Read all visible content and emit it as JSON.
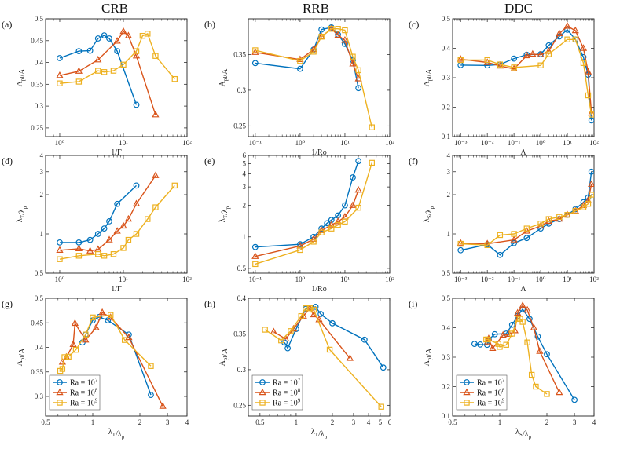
{
  "column_titles": [
    "CRB",
    "RRB",
    "DDC"
  ],
  "series_meta": [
    {
      "name": "Ra = 10",
      "exp": "7",
      "color": "#0072BD",
      "marker": "circle"
    },
    {
      "name": "Ra = 10",
      "exp": "8",
      "color": "#D95319",
      "marker": "triangle"
    },
    {
      "name": "Ra = 10",
      "exp": "9",
      "color": "#EDB120",
      "marker": "square"
    }
  ],
  "chart_data": [
    {
      "panel": "(a)",
      "type": "line",
      "xscale": "log",
      "yscale": "linear",
      "xlim": [
        0.6,
        100
      ],
      "ylim": [
        0.23,
        0.5
      ],
      "xticks": [
        1,
        10,
        100
      ],
      "xticklabels": [
        "10⁰",
        "10¹",
        "10²"
      ],
      "yticks": [
        0.25,
        0.3,
        0.35,
        0.4,
        0.45,
        0.5
      ],
      "yticklabels": [
        "0.25",
        "0.3",
        "0.35",
        "0.4",
        "0.45",
        "0.5"
      ],
      "xlabel": "1/Γ",
      "ylabel": "A_pl/A",
      "legend": "",
      "series": [
        {
          "name": "Ra = 10^7",
          "x": [
            1,
            2,
            3,
            4,
            5,
            6,
            8,
            16
          ],
          "y": [
            0.41,
            0.426,
            0.427,
            0.455,
            0.462,
            0.455,
            0.426,
            0.303
          ]
        },
        {
          "name": "Ra = 10^8",
          "x": [
            1,
            2,
            4,
            8,
            10,
            12,
            16,
            32
          ],
          "y": [
            0.37,
            0.38,
            0.406,
            0.449,
            0.471,
            0.461,
            0.415,
            0.28
          ]
        },
        {
          "name": "Ra = 10^9",
          "x": [
            1,
            2,
            4,
            5,
            7,
            10,
            16,
            20,
            24,
            32,
            64
          ],
          "y": [
            0.352,
            0.356,
            0.381,
            0.378,
            0.381,
            0.395,
            0.426,
            0.461,
            0.466,
            0.415,
            0.362
          ]
        }
      ]
    },
    {
      "panel": "(b)",
      "type": "line",
      "xscale": "log",
      "yscale": "linear",
      "xlim": [
        0.07,
        100
      ],
      "ylim": [
        0.235,
        0.4
      ],
      "xticks": [
        0.1,
        1,
        10,
        100
      ],
      "xticklabels": [
        "10⁻¹",
        "10⁰",
        "10¹",
        "10²"
      ],
      "yticks": [
        0.25,
        0.3,
        0.35
      ],
      "yticklabels": [
        "0.25",
        "0.3",
        "0.35"
      ],
      "xlabel": "1/Ro",
      "ylabel": "A_pl/A",
      "legend": "",
      "series": [
        {
          "name": "Ra = 10^7",
          "x": [
            0.1,
            1,
            2,
            3,
            5,
            7,
            10,
            15,
            20
          ],
          "y": [
            0.338,
            0.33,
            0.357,
            0.385,
            0.388,
            0.378,
            0.365,
            0.342,
            0.303
          ]
        },
        {
          "name": "Ra = 10^8",
          "x": [
            0.1,
            1,
            2,
            3,
            5,
            7,
            10,
            15,
            20
          ],
          "y": [
            0.353,
            0.343,
            0.357,
            0.375,
            0.386,
            0.377,
            0.37,
            0.337,
            0.316
          ]
        },
        {
          "name": "Ra = 10^9",
          "x": [
            0.1,
            1,
            2,
            3,
            5,
            7,
            10,
            15,
            20,
            40
          ],
          "y": [
            0.356,
            0.341,
            0.354,
            0.375,
            0.386,
            0.386,
            0.384,
            0.347,
            0.328,
            0.248
          ]
        }
      ]
    },
    {
      "panel": "(c)",
      "type": "line",
      "xscale": "log",
      "yscale": "linear",
      "xlim": [
        0.0005,
        100
      ],
      "ylim": [
        0.1,
        0.5
      ],
      "xticks": [
        0.001,
        0.01,
        0.1,
        1,
        10,
        100
      ],
      "xticklabels": [
        "10⁻³",
        "10⁻²",
        "10⁻¹",
        "10⁰",
        "10¹",
        "10²"
      ],
      "yticks": [
        0.1,
        0.2,
        0.3,
        0.4,
        0.5
      ],
      "yticklabels": [
        "0.1",
        "0.2",
        "0.3",
        "0.4",
        "0.5"
      ],
      "xlabel": "Λ",
      "ylabel": "A_pl/A",
      "legend": "",
      "series": [
        {
          "name": "Ra = 10^7",
          "x": [
            0.001,
            0.01,
            0.03,
            0.1,
            0.3,
            1,
            2,
            5,
            10,
            20,
            40,
            60,
            80
          ],
          "y": [
            0.343,
            0.342,
            0.345,
            0.365,
            0.378,
            0.38,
            0.41,
            0.44,
            0.463,
            0.43,
            0.37,
            0.31,
            0.155
          ]
        },
        {
          "name": "Ra = 10^8",
          "x": [
            0.001,
            0.01,
            0.03,
            0.1,
            0.3,
            0.5,
            1,
            2,
            5,
            10,
            20,
            40,
            60,
            80
          ],
          "y": [
            0.363,
            0.352,
            0.34,
            0.33,
            0.375,
            0.38,
            0.378,
            0.39,
            0.45,
            0.475,
            0.46,
            0.4,
            0.32,
            0.18
          ]
        },
        {
          "name": "Ra = 10^9",
          "x": [
            0.001,
            0.01,
            0.03,
            0.1,
            1,
            2,
            10,
            20,
            40,
            60,
            80
          ],
          "y": [
            0.36,
            0.36,
            0.345,
            0.335,
            0.342,
            0.38,
            0.43,
            0.43,
            0.35,
            0.24,
            0.175
          ]
        }
      ]
    },
    {
      "panel": "(d)",
      "type": "line",
      "xscale": "log",
      "yscale": "log",
      "xlim": [
        0.6,
        100
      ],
      "ylim": [
        0.5,
        4
      ],
      "xticks": [
        1,
        10,
        100
      ],
      "xticklabels": [
        "10⁰",
        "10¹",
        "10²"
      ],
      "yticks": [
        0.5,
        1,
        2,
        3,
        4
      ],
      "yticklabels": [
        "0.5",
        "1",
        "2",
        "3",
        "4"
      ],
      "xlabel": "1/Γ",
      "ylabel": "λ_T/λ_p",
      "legend": "",
      "series": [
        {
          "name": "Ra = 10^7",
          "x": [
            1,
            2,
            3,
            4,
            5,
            6,
            8,
            16
          ],
          "y": [
            0.86,
            0.86,
            0.9,
            1.0,
            1.1,
            1.25,
            1.7,
            2.35
          ]
        },
        {
          "name": "Ra = 10^8",
          "x": [
            1,
            2,
            3,
            4,
            6,
            8,
            10,
            12,
            16,
            32
          ],
          "y": [
            0.75,
            0.77,
            0.74,
            0.76,
            0.9,
            1.05,
            1.15,
            1.3,
            1.7,
            2.8
          ]
        },
        {
          "name": "Ra = 10^9",
          "x": [
            1,
            2,
            4,
            5,
            7,
            10,
            12,
            16,
            24,
            32,
            64
          ],
          "y": [
            0.64,
            0.68,
            0.7,
            0.68,
            0.7,
            0.78,
            0.9,
            1.0,
            1.3,
            1.6,
            2.35
          ]
        }
      ]
    },
    {
      "panel": "(e)",
      "type": "line",
      "xscale": "log",
      "yscale": "log",
      "xlim": [
        0.07,
        100
      ],
      "ylim": [
        0.45,
        6
      ],
      "xticks": [
        0.1,
        1,
        10,
        100
      ],
      "xticklabels": [
        "10⁻¹",
        "10⁰",
        "10¹",
        "10²"
      ],
      "yticks": [
        0.5,
        1,
        2,
        3,
        4,
        5,
        6
      ],
      "yticklabels": [
        "0.5",
        "1",
        "2",
        "3",
        "4",
        "5",
        "6"
      ],
      "xlabel": "1/Ro",
      "ylabel": "λ_T/λ_p",
      "legend": "",
      "series": [
        {
          "name": "Ra = 10^7",
          "x": [
            0.1,
            1,
            2,
            3,
            4,
            5,
            7,
            10,
            15,
            20
          ],
          "y": [
            0.8,
            0.85,
            1.0,
            1.2,
            1.35,
            1.45,
            1.6,
            2.0,
            3.7,
            5.3
          ]
        },
        {
          "name": "Ra = 10^8",
          "x": [
            0.1,
            1,
            2,
            3,
            5,
            7,
            10,
            15,
            20
          ],
          "y": [
            0.65,
            0.82,
            0.95,
            1.15,
            1.3,
            1.4,
            1.55,
            2.0,
            2.8
          ]
        },
        {
          "name": "Ra = 10^9",
          "x": [
            0.1,
            1,
            2,
            3,
            5,
            7,
            10,
            20,
            40
          ],
          "y": [
            0.55,
            0.75,
            0.9,
            1.1,
            1.2,
            1.3,
            1.4,
            1.9,
            5.1
          ]
        }
      ]
    },
    {
      "panel": "(f)",
      "type": "line",
      "xscale": "log",
      "yscale": "log",
      "xlim": [
        0.0005,
        100
      ],
      "ylim": [
        0.5,
        4
      ],
      "xticks": [
        0.001,
        0.01,
        0.1,
        1,
        10,
        100
      ],
      "xticklabels": [
        "10⁻³",
        "10⁻²",
        "10⁻¹",
        "10⁰",
        "10¹",
        "10²"
      ],
      "yticks": [
        0.5,
        1,
        2,
        3,
        4
      ],
      "yticklabels": [
        "0.5",
        "1",
        "2",
        "3",
        "4"
      ],
      "xlabel": "Λ",
      "ylabel": "λ_S/λ_p",
      "legend": "",
      "series": [
        {
          "name": "Ra = 10^7",
          "x": [
            0.001,
            0.01,
            0.03,
            0.1,
            0.3,
            1,
            2,
            5,
            10,
            20,
            40,
            60,
            80
          ],
          "y": [
            0.75,
            0.83,
            0.69,
            0.85,
            0.93,
            1.1,
            1.2,
            1.3,
            1.4,
            1.55,
            1.75,
            1.9,
            3.0
          ]
        },
        {
          "name": "Ra = 10^8",
          "x": [
            0.001,
            0.01,
            0.1,
            0.3,
            1,
            2,
            5,
            10,
            20,
            40,
            60,
            80
          ],
          "y": [
            0.85,
            0.84,
            0.9,
            1.05,
            1.15,
            1.25,
            1.3,
            1.4,
            1.5,
            1.65,
            1.8,
            2.4
          ]
        },
        {
          "name": "Ra = 10^9",
          "x": [
            0.001,
            0.01,
            0.03,
            0.1,
            0.3,
            1,
            2,
            5,
            10,
            20,
            40,
            60,
            80
          ],
          "y": [
            0.84,
            0.82,
            0.98,
            1.0,
            1.1,
            1.2,
            1.3,
            1.35,
            1.4,
            1.5,
            1.6,
            1.7,
            2.0
          ]
        }
      ]
    },
    {
      "panel": "(g)",
      "type": "line",
      "xscale": "log",
      "yscale": "linear",
      "xlim": [
        0.5,
        4
      ],
      "ylim": [
        0.26,
        0.5
      ],
      "xticks": [
        0.5,
        1,
        2,
        3,
        4
      ],
      "xticklabels": [
        "0.5",
        "1",
        "2",
        "3",
        "4"
      ],
      "yticks": [
        0.3,
        0.35,
        0.4,
        0.45,
        0.5
      ],
      "yticklabels": [
        "0.3",
        "0.35",
        "0.4",
        "0.45",
        "0.5"
      ],
      "xlabel": "λ_T/λ_p",
      "ylabel": "A_pl/A",
      "legend": "bottom-left",
      "series": [
        {
          "name": "Ra = 10^7",
          "x": [
            0.86,
            0.9,
            1.0,
            1.1,
            1.25,
            1.7,
            2.35
          ],
          "y": [
            0.41,
            0.426,
            0.455,
            0.462,
            0.455,
            0.426,
            0.303
          ]
        },
        {
          "name": "Ra = 10^8",
          "x": [
            0.64,
            0.68,
            0.75,
            0.77,
            0.9,
            1.05,
            1.15,
            1.3,
            1.7,
            2.8
          ],
          "y": [
            0.37,
            0.38,
            0.406,
            0.449,
            0.415,
            0.44,
            0.471,
            0.461,
            0.42,
            0.28
          ]
        },
        {
          "name": "Ra = 10^9",
          "x": [
            0.62,
            0.64,
            0.66,
            0.7,
            0.78,
            0.9,
            1.0,
            1.3,
            1.6,
            2.35
          ],
          "y": [
            0.352,
            0.356,
            0.38,
            0.381,
            0.395,
            0.426,
            0.461,
            0.466,
            0.415,
            0.362
          ]
        }
      ]
    },
    {
      "panel": "(h)",
      "type": "line",
      "xscale": "log",
      "yscale": "linear",
      "xlim": [
        0.4,
        6
      ],
      "ylim": [
        0.235,
        0.4
      ],
      "xticks": [
        0.5,
        1,
        2,
        3,
        4,
        5,
        6
      ],
      "xticklabels": [
        "0.5",
        "1",
        "2",
        "3",
        "4",
        "5",
        "6"
      ],
      "yticks": [
        0.25,
        0.3,
        0.35,
        0.4
      ],
      "yticklabels": [
        "0.25",
        "0.3",
        "0.35",
        "0.4"
      ],
      "xlabel": "λ_T/λ_p",
      "ylabel": "A_pl/A",
      "legend": "bottom-left",
      "series": [
        {
          "name": "Ra = 10^7",
          "x": [
            0.8,
            0.85,
            1.0,
            1.2,
            1.45,
            1.6,
            2.0,
            3.7,
            5.3
          ],
          "y": [
            0.338,
            0.33,
            0.357,
            0.385,
            0.388,
            0.378,
            0.365,
            0.342,
            0.303
          ]
        },
        {
          "name": "Ra = 10^8",
          "x": [
            0.65,
            0.82,
            0.95,
            1.15,
            1.3,
            1.4,
            1.55,
            2.8
          ],
          "y": [
            0.353,
            0.343,
            0.357,
            0.375,
            0.386,
            0.377,
            0.37,
            0.316
          ]
        },
        {
          "name": "Ra = 10^9",
          "x": [
            0.55,
            0.75,
            0.9,
            1.1,
            1.2,
            1.3,
            1.4,
            1.9,
            5.1
          ],
          "y": [
            0.356,
            0.341,
            0.354,
            0.375,
            0.386,
            0.386,
            0.384,
            0.328,
            0.248
          ]
        }
      ]
    },
    {
      "panel": "(i)",
      "type": "line",
      "xscale": "log",
      "yscale": "linear",
      "xlim": [
        0.5,
        4
      ],
      "ylim": [
        0.1,
        0.5
      ],
      "xticks": [
        0.5,
        1,
        2,
        3,
        4
      ],
      "xticklabels": [
        "0.5",
        "1",
        "2",
        "3",
        "4"
      ],
      "yticks": [
        0.1,
        0.2,
        0.3,
        0.4,
        0.5
      ],
      "yticklabels": [
        "0.1",
        "0.2",
        "0.3",
        "0.4",
        "0.5"
      ],
      "xlabel": "λ_S/λ_p",
      "ylabel": "A_pl/A",
      "legend": "bottom-left",
      "series": [
        {
          "name": "Ra = 10^7",
          "x": [
            0.69,
            0.75,
            0.83,
            0.85,
            0.93,
            1.1,
            1.2,
            1.3,
            1.4,
            1.55,
            1.75,
            2.0,
            3.0
          ],
          "y": [
            0.345,
            0.343,
            0.342,
            0.36,
            0.378,
            0.38,
            0.41,
            0.44,
            0.463,
            0.43,
            0.37,
            0.31,
            0.155
          ]
        },
        {
          "name": "Ra = 10^8",
          "x": [
            0.84,
            0.85,
            0.9,
            1.05,
            1.15,
            1.25,
            1.3,
            1.4,
            1.5,
            1.65,
            1.8,
            2.4
          ],
          "y": [
            0.352,
            0.363,
            0.33,
            0.375,
            0.378,
            0.39,
            0.45,
            0.475,
            0.46,
            0.4,
            0.32,
            0.18
          ]
        },
        {
          "name": "Ra = 10^9",
          "x": [
            0.82,
            0.84,
            0.98,
            1.0,
            1.1,
            1.2,
            1.3,
            1.35,
            1.4,
            1.5,
            1.6,
            1.7,
            2.0
          ],
          "y": [
            0.36,
            0.36,
            0.345,
            0.335,
            0.342,
            0.38,
            0.43,
            0.43,
            0.42,
            0.35,
            0.24,
            0.2,
            0.175
          ]
        }
      ]
    }
  ]
}
